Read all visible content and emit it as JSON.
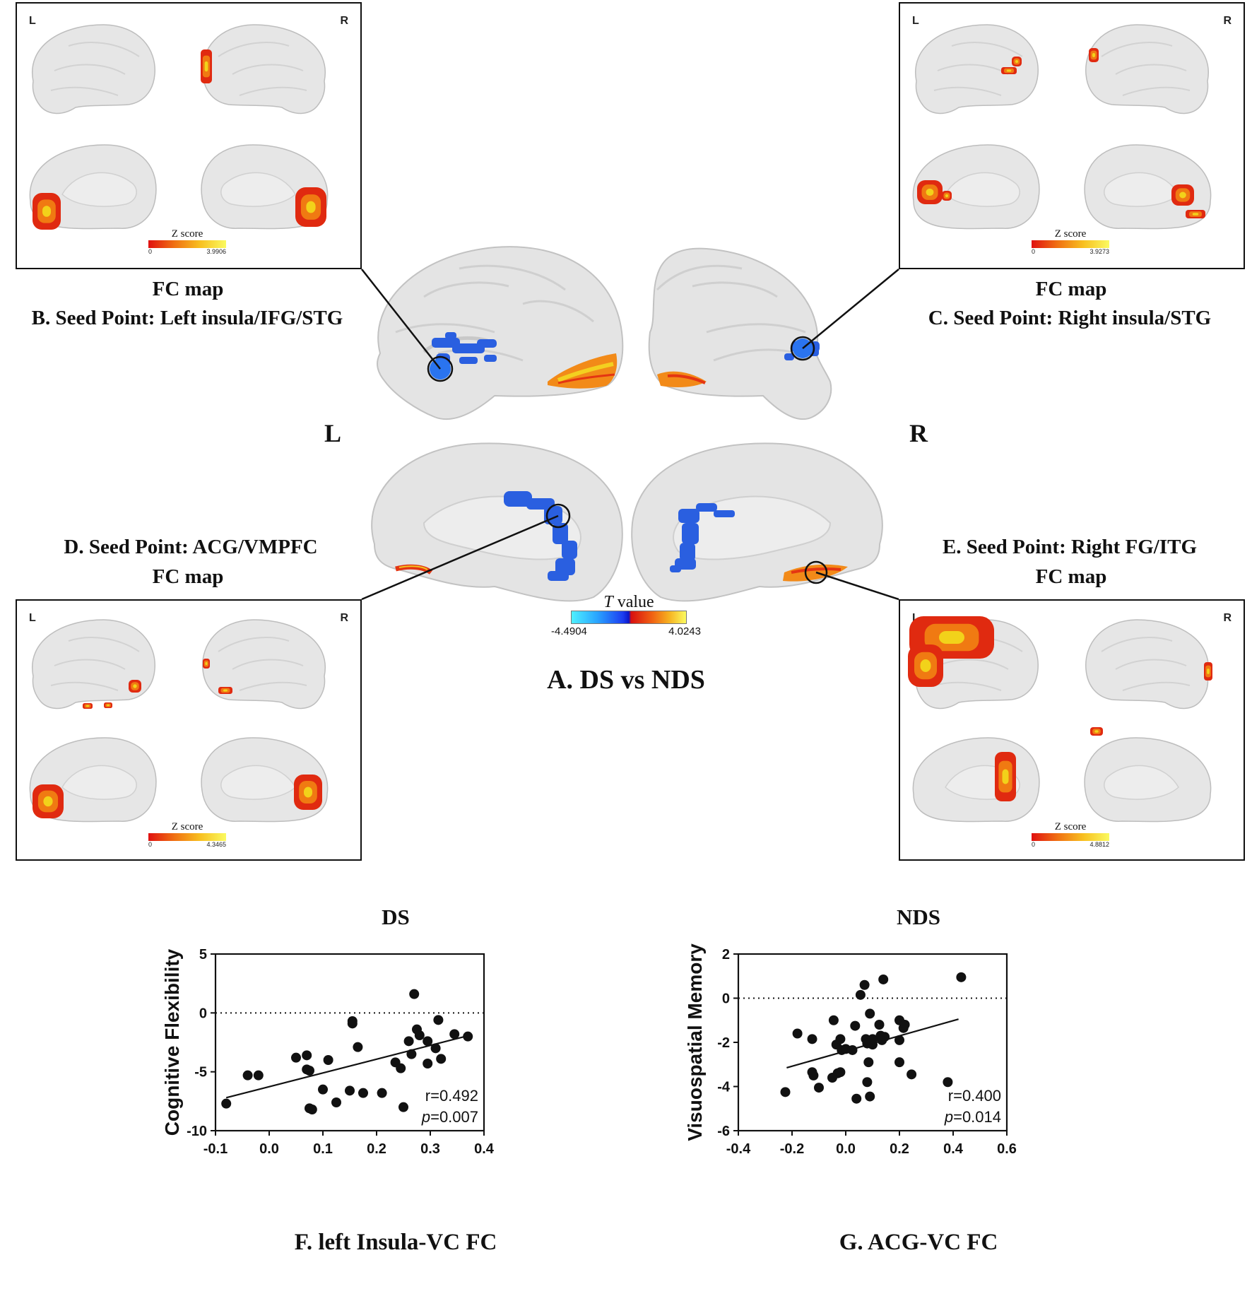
{
  "panelA": {
    "title": "A. DS vs NDS",
    "left_letter": "L",
    "right_letter": "R",
    "colorbar_title_italic": "T",
    "colorbar_title_rest": " value",
    "colorbar_min": "-4.4904",
    "colorbar_max": "4.0243"
  },
  "panels": {
    "B": {
      "caption_line1": "FC map",
      "caption_line2": "B. Seed Point: Left insula/IFG/STG",
      "corner_left": "L",
      "corner_right": "R",
      "scale_title": "Z score",
      "scale_min": "0",
      "scale_max": "3.9906"
    },
    "C": {
      "caption_line1": "FC map",
      "caption_line2": "C. Seed Point: Right insula/STG",
      "corner_left": "L",
      "corner_right": "R",
      "scale_title": "Z score",
      "scale_min": "0",
      "scale_max": "3.9273"
    },
    "D": {
      "caption_line1": "D. Seed Point: ACG/VMPFC",
      "caption_line2": "FC map",
      "corner_left": "L",
      "corner_right": "R",
      "scale_title": "Z score",
      "scale_min": "0",
      "scale_max": "4.3465"
    },
    "E": {
      "caption_line1": "E. Seed Point: Right FG/ITG",
      "caption_line2": "FC map",
      "corner_left": "L",
      "corner_right": "R",
      "scale_title": "Z score",
      "scale_min": "0",
      "scale_max": "4.8812"
    }
  },
  "colors": {
    "brain": "#e6e6e6",
    "brain_edge": "#bdbdbd",
    "blue": "#2a5fe0",
    "orange": "#f07a12",
    "red": "#e02a10",
    "yellow": "#f2d21a"
  },
  "chart_data": [
    {
      "type": "scatter",
      "group_title": "DS",
      "xlabel": "F. left Insula-VC FC",
      "ylabel": "Cognitive Flexibility",
      "xlim": [
        -0.1,
        0.4
      ],
      "ylim": [
        -10,
        5
      ],
      "xticks": [
        "-0.1",
        "0.0",
        "0.1",
        "0.2",
        "0.3",
        "0.4"
      ],
      "yticks": [
        "-10",
        "-5",
        "0",
        "5"
      ],
      "reference_y": 0,
      "stat_r": "r=0.492",
      "stat_p_label": "p",
      "stat_p_value": "=0.007",
      "fit_line": [
        [
          -0.08,
          -7.2
        ],
        [
          0.365,
          -2.0
        ]
      ],
      "points": [
        [
          -0.08,
          -7.7
        ],
        [
          -0.04,
          -5.3
        ],
        [
          -0.02,
          -5.3
        ],
        [
          0.05,
          -3.8
        ],
        [
          0.07,
          -3.6
        ],
        [
          0.07,
          -4.8
        ],
        [
          0.075,
          -4.9
        ],
        [
          0.075,
          -8.1
        ],
        [
          0.08,
          -8.2
        ],
        [
          0.1,
          -6.5
        ],
        [
          0.11,
          -4.0
        ],
        [
          0.125,
          -7.6
        ],
        [
          0.15,
          -6.6
        ],
        [
          0.155,
          -0.7
        ],
        [
          0.155,
          -0.9
        ],
        [
          0.165,
          -2.9
        ],
        [
          0.175,
          -6.8
        ],
        [
          0.21,
          -6.8
        ],
        [
          0.235,
          -4.2
        ],
        [
          0.245,
          -4.7
        ],
        [
          0.25,
          -8.0
        ],
        [
          0.26,
          -2.4
        ],
        [
          0.265,
          -3.5
        ],
        [
          0.27,
          1.6
        ],
        [
          0.275,
          -1.4
        ],
        [
          0.28,
          -1.9
        ],
        [
          0.295,
          -2.4
        ],
        [
          0.295,
          -4.3
        ],
        [
          0.31,
          -3.0
        ],
        [
          0.315,
          -0.6
        ],
        [
          0.32,
          -3.9
        ],
        [
          0.345,
          -1.8
        ],
        [
          0.37,
          -2.0
        ]
      ]
    },
    {
      "type": "scatter",
      "group_title": "NDS",
      "xlabel": "G. ACG-VC FC",
      "ylabel": "Visuospatial Memory",
      "xlim": [
        -0.4,
        0.6
      ],
      "ylim": [
        -6,
        2
      ],
      "xticks": [
        "-0.4",
        "-0.2",
        "0.0",
        "0.2",
        "0.4",
        "0.6"
      ],
      "yticks": [
        "-6",
        "-4",
        "-2",
        "0",
        "2"
      ],
      "reference_y": 0,
      "stat_r": "r=0.400",
      "stat_p_label": "p",
      "stat_p_value": "=0.014",
      "fit_line": [
        [
          -0.22,
          -3.15
        ],
        [
          0.42,
          -0.95
        ]
      ],
      "points": [
        [
          -0.225,
          -4.25
        ],
        [
          -0.18,
          -1.6
        ],
        [
          -0.125,
          -1.85
        ],
        [
          -0.125,
          -3.35
        ],
        [
          -0.12,
          -3.5
        ],
        [
          -0.1,
          -4.05
        ],
        [
          -0.05,
          -3.6
        ],
        [
          -0.045,
          -1.0
        ],
        [
          -0.035,
          -2.1
        ],
        [
          -0.03,
          -3.4
        ],
        [
          -0.02,
          -1.85
        ],
        [
          -0.02,
          -3.35
        ],
        [
          -0.015,
          -2.35
        ],
        [
          0.0,
          -2.3
        ],
        [
          0.025,
          -2.35
        ],
        [
          0.035,
          -1.25
        ],
        [
          0.04,
          -4.55
        ],
        [
          0.055,
          0.15
        ],
        [
          0.07,
          0.6
        ],
        [
          0.075,
          -1.85
        ],
        [
          0.08,
          -2.05
        ],
        [
          0.08,
          -3.8
        ],
        [
          0.085,
          -2.9
        ],
        [
          0.09,
          -0.7
        ],
        [
          0.09,
          -4.45
        ],
        [
          0.1,
          -2.1
        ],
        [
          0.1,
          -1.85
        ],
        [
          0.125,
          -1.2
        ],
        [
          0.13,
          -1.7
        ],
        [
          0.135,
          -1.9
        ],
        [
          0.14,
          0.85
        ],
        [
          0.145,
          -1.75
        ],
        [
          0.2,
          -1.0
        ],
        [
          0.2,
          -1.9
        ],
        [
          0.2,
          -2.9
        ],
        [
          0.215,
          -1.35
        ],
        [
          0.22,
          -1.2
        ],
        [
          0.245,
          -3.45
        ],
        [
          0.38,
          -3.8
        ],
        [
          0.43,
          0.95
        ]
      ]
    }
  ]
}
